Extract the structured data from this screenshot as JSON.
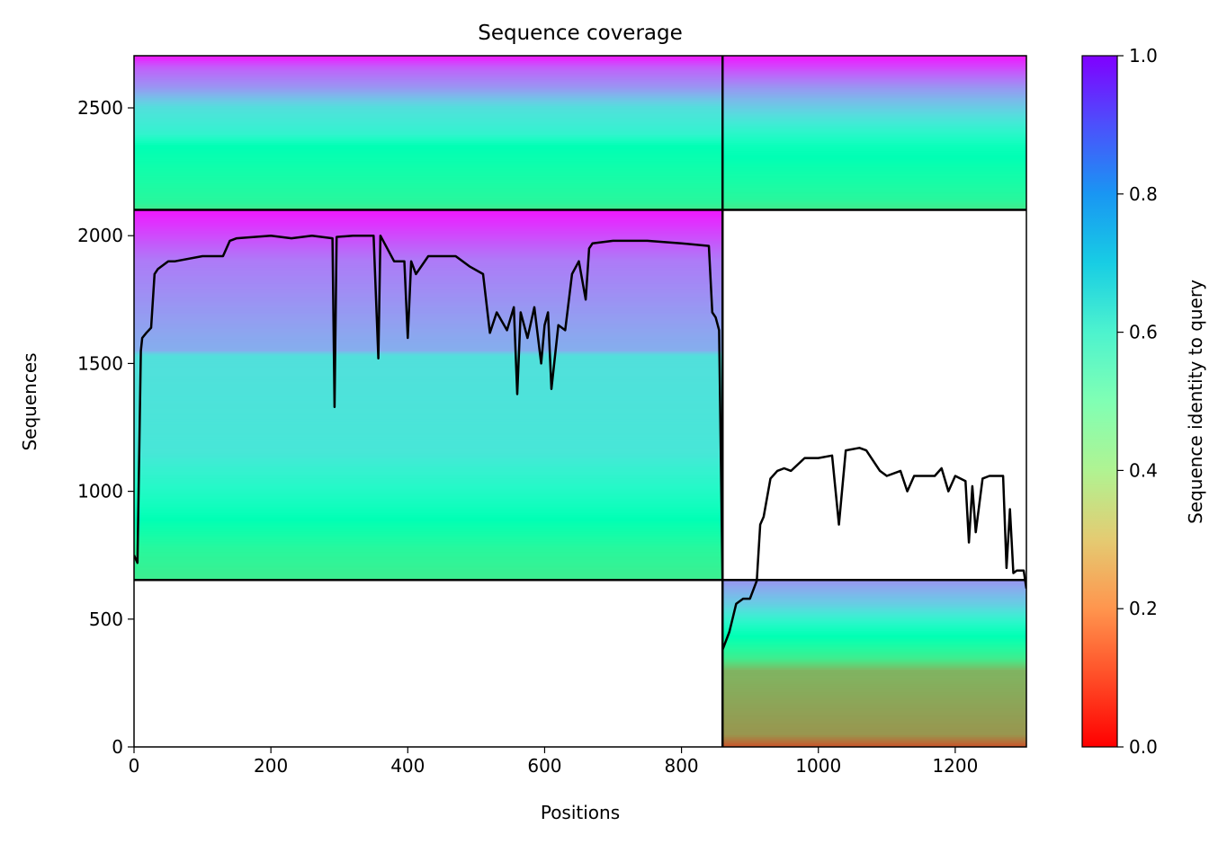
{
  "chart_data": {
    "type": "heatmap",
    "title": "Sequence coverage",
    "xlabel": "Positions",
    "ylabel": "Sequences",
    "colorbar_label": "Sequence identity to query",
    "colormap": "rainbow_r",
    "xlim": [
      0,
      1304
    ],
    "ylim": [
      0,
      2704
    ],
    "x_ticks": [
      0,
      200,
      400,
      600,
      800,
      1000,
      1200
    ],
    "y_ticks": [
      0,
      500,
      1000,
      1500,
      2000,
      2500
    ],
    "colorbar_ticks": [
      0.0,
      0.2,
      0.4,
      0.6,
      0.8,
      1.0
    ],
    "colorbar_range": [
      0,
      1
    ],
    "chain_boundaries_x": [
      860
    ],
    "block_boundaries_y": [
      653,
      2101
    ],
    "blocks": [
      {
        "x_range": [
          0,
          860
        ],
        "y_range": [
          2101,
          2704
        ],
        "identity_profile": [
          {
            "seq_from_block_bottom": 0,
            "identity": 0.36
          },
          {
            "seq_from_block_bottom": 30,
            "identity": 0.42
          },
          {
            "seq_from_block_bottom": 250,
            "identity": 0.5
          },
          {
            "seq_from_block_bottom": 300,
            "identity": 0.6
          },
          {
            "seq_from_block_bottom": 400,
            "identity": 0.66
          },
          {
            "seq_from_block_bottom": 480,
            "identity": 0.8
          },
          {
            "seq_from_block_bottom": 560,
            "identity": 0.88
          },
          {
            "seq_from_block_bottom": 603,
            "identity": 0.97
          }
        ]
      },
      {
        "x_range": [
          860,
          1304
        ],
        "y_range": [
          2101,
          2704
        ],
        "identity_profile": [
          {
            "seq_from_block_bottom": 0,
            "identity": 0.36
          },
          {
            "seq_from_block_bottom": 40,
            "identity": 0.42
          },
          {
            "seq_from_block_bottom": 250,
            "identity": 0.52
          },
          {
            "seq_from_block_bottom": 350,
            "identity": 0.64
          },
          {
            "seq_from_block_bottom": 480,
            "identity": 0.8
          },
          {
            "seq_from_block_bottom": 603,
            "identity": 0.97
          }
        ]
      },
      {
        "x_range": [
          0,
          860
        ],
        "y_range": [
          653,
          2101
        ],
        "identity_profile": [
          {
            "seq_from_block_bottom": 0,
            "identity": 0.38
          },
          {
            "seq_from_block_bottom": 120,
            "identity": 0.42
          },
          {
            "seq_from_block_bottom": 300,
            "identity": 0.54
          },
          {
            "seq_from_block_bottom": 500,
            "identity": 0.64
          },
          {
            "seq_from_block_bottom": 880,
            "identity": 0.66
          },
          {
            "seq_from_block_bottom": 900,
            "identity": 0.76
          },
          {
            "seq_from_block_bottom": 1250,
            "identity": 0.84
          },
          {
            "seq_from_block_bottom": 1448,
            "identity": 0.97
          }
        ]
      },
      {
        "x_range": [
          860,
          1304
        ],
        "y_range": [
          0,
          653
        ],
        "identity_profile": [
          {
            "seq_from_block_bottom": 0,
            "identity": 0.1
          },
          {
            "seq_from_block_bottom": 50,
            "identity": 0.2
          },
          {
            "seq_from_block_bottom": 300,
            "identity": 0.25
          },
          {
            "seq_from_block_bottom": 350,
            "identity": 0.38
          },
          {
            "seq_from_block_bottom": 470,
            "identity": 0.55
          },
          {
            "seq_from_block_bottom": 560,
            "identity": 0.7
          },
          {
            "seq_from_block_bottom": 653,
            "identity": 0.8
          }
        ]
      }
    ],
    "series": [
      {
        "x": [
          0,
          5,
          10,
          12,
          18,
          25,
          30,
          35,
          50,
          60,
          100,
          130,
          140,
          150,
          200,
          230,
          260,
          290,
          293,
          296,
          320,
          350,
          357,
          360,
          380,
          395,
          400,
          405,
          412,
          430,
          470,
          490,
          510,
          520,
          530,
          545,
          555,
          560,
          565,
          575,
          585,
          595,
          600,
          605,
          610,
          620,
          630,
          640,
          650,
          660,
          665,
          670,
          700,
          750,
          800,
          840,
          845,
          850,
          855,
          860
        ],
        "y": [
          750,
          720,
          1550,
          1600,
          1620,
          1640,
          1850,
          1870,
          1900,
          1900,
          1920,
          1920,
          1980,
          1990,
          2000,
          1990,
          2000,
          1990,
          1330,
          1995,
          2000,
          2000,
          1520,
          2000,
          1900,
          1900,
          1600,
          1900,
          1850,
          1920,
          1920,
          1880,
          1850,
          1620,
          1700,
          1630,
          1720,
          1380,
          1700,
          1600,
          1720,
          1500,
          1650,
          1700,
          1400,
          1650,
          1630,
          1850,
          1900,
          1750,
          1950,
          1970,
          1980,
          1980,
          1970,
          1960,
          1700,
          1680,
          1630,
          653
        ]
      },
      {
        "x": [
          860,
          870,
          880,
          890,
          900,
          910,
          915,
          920,
          930,
          940,
          950,
          960,
          980,
          1000,
          1020,
          1030,
          1040,
          1060,
          1070,
          1090,
          1100,
          1120,
          1130,
          1140,
          1150,
          1160,
          1170,
          1180,
          1190,
          1200,
          1215,
          1220,
          1225,
          1230,
          1240,
          1250,
          1270,
          1275,
          1280,
          1285,
          1290,
          1300,
          1304
        ],
        "y": [
          380,
          450,
          560,
          580,
          580,
          650,
          870,
          900,
          1050,
          1080,
          1090,
          1080,
          1130,
          1130,
          1140,
          870,
          1160,
          1170,
          1160,
          1080,
          1060,
          1080,
          1000,
          1060,
          1060,
          1060,
          1060,
          1090,
          1000,
          1060,
          1040,
          800,
          1020,
          840,
          1050,
          1060,
          1060,
          700,
          930,
          680,
          690,
          690,
          620
        ]
      }
    ]
  }
}
